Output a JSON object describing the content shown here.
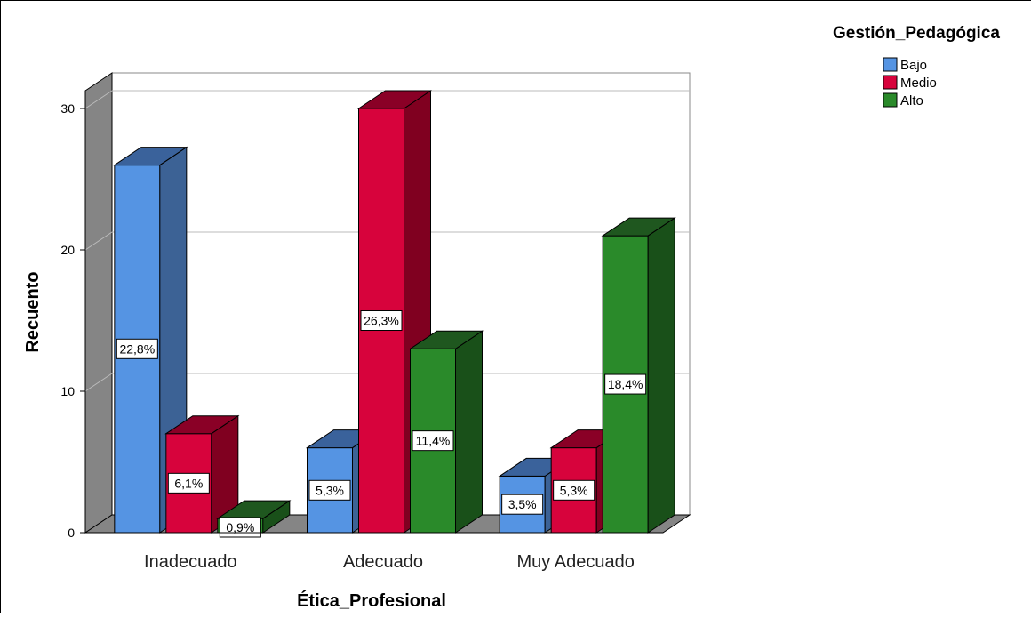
{
  "chart_data": {
    "type": "bar",
    "categories": [
      "Inadecuado",
      "Adecuado",
      "Muy Adecuado"
    ],
    "series": [
      {
        "name": "Bajo",
        "values": [
          26,
          6,
          4
        ],
        "labels": [
          "22,8%",
          "5,3%",
          "3,5%"
        ],
        "color": "#5594e3",
        "side": "#3c6295",
        "top": "#3a629b"
      },
      {
        "name": "Medio",
        "values": [
          7,
          30,
          6
        ],
        "labels": [
          "6,1%",
          "26,3%",
          "5,3%"
        ],
        "color": "#d7033c",
        "side": "#800020",
        "top": "#8a0026"
      },
      {
        "name": "Alto",
        "values": [
          1,
          13,
          21
        ],
        "labels": [
          "0,9%",
          "11,4%",
          "18,4%"
        ],
        "color": "#2a8a2a",
        "side": "#195019",
        "top": "#1f571f"
      }
    ],
    "title": "",
    "xlabel": "Ética_Profesional",
    "ylabel": "Recuento",
    "ylim": [
      0,
      30
    ],
    "yticks": [
      "0",
      "10",
      "20",
      "30"
    ],
    "legend_title": "Gestión_Pedagógica",
    "legend_position": "top-right",
    "grid": true
  }
}
